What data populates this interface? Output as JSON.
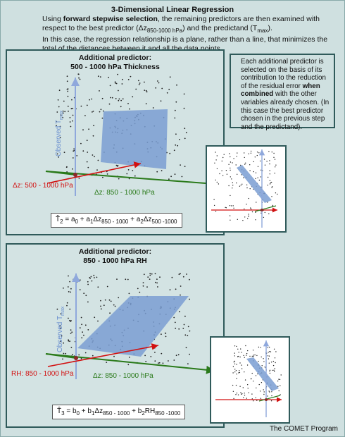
{
  "title": "3-Dimensional Linear Regression",
  "intro": {
    "pre_bold": "Using ",
    "bold": "forward stepwise selection",
    "post_bold": ", the remaining predictors are then examined with respect to the best predictor (",
    "predictor_sym": "Δz",
    "predictor_sub": "850-1000 hPa",
    "mid": ") and the predictand (T",
    "predictand_sub": "max",
    "end": ").",
    "line2": "In this case, the regression relationship is a plane, rather than a line, that minimizes the total of the distances between it and all the data points."
  },
  "note": {
    "pre": "Each additional predictor is selected on the basis of its contribution to the reduction of the residual error ",
    "bold": "when combined",
    "post": " with the other variables already chosen. (In this case the best predictor chosen in the previous step and the predictand)."
  },
  "panel1": {
    "title_line1": "Additional predictor:",
    "title_line2": "500 - 1000 hPa Thickness",
    "axis_y": "Observed T",
    "axis_y_sub": "max",
    "red_label": "Δz:  500 - 1000 hPa",
    "green_label": "Δz:  850 - 1000 hPa",
    "formula": {
      "lhs": "T̂",
      "lhs_sub": "2",
      "eq": " = a",
      "a0": "0",
      "p1": " + a",
      "a1": "1",
      "t1": "Δz",
      "t1_sub": "850 - 1000",
      "p2": " + a",
      "a2": "2",
      "t2": "Δz",
      "t2_sub": "500 -1000"
    }
  },
  "panel2": {
    "title_line1": "Additional predictor:",
    "title_line2": "850 - 1000 hPa RH",
    "axis_y": "Observed T",
    "axis_y_sub": "max",
    "red_label": "RH:  850 - 1000 hPa",
    "green_label": "Δz:  850 - 1000 hPa",
    "formula": {
      "lhs": "T̂",
      "lhs_sub": "3",
      "eq": " = b",
      "b0": "0",
      "p1": " + b",
      "b1": "1",
      "t1": "Δz",
      "t1_sub": "850 - 1000",
      "p2": " + b",
      "b2": "2",
      "t2": "RH",
      "t2_sub": "850 -1000"
    }
  },
  "footer": "The COMET Program",
  "colors": {
    "plane": "#7a9ed2",
    "red_axis": "#d21010",
    "green_axis": "#2a7a1a",
    "y_axis": "#8fa8dc",
    "border": "#2f5a5a"
  }
}
